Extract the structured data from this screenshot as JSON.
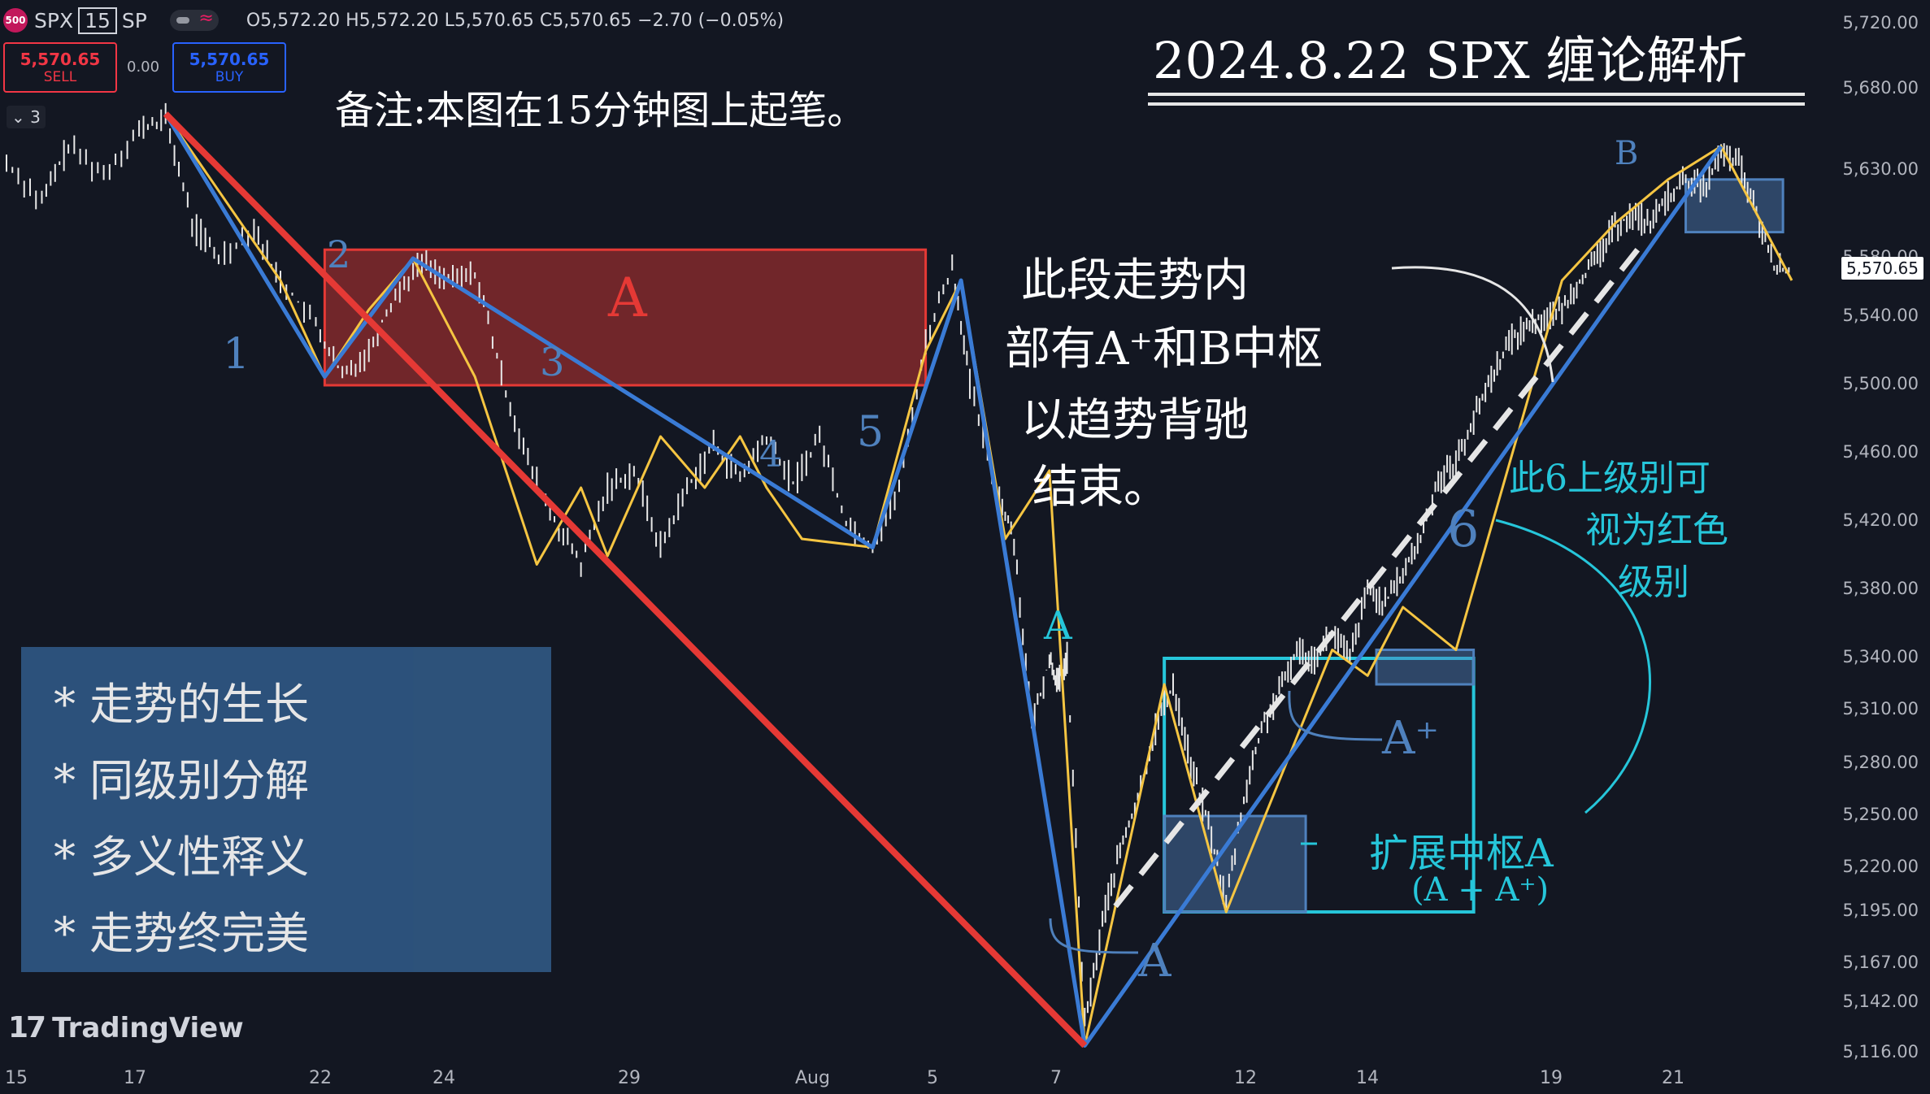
{
  "header": {
    "symbol_badge": "500",
    "symbol": "SPX",
    "interval": "15",
    "exchange": "SP",
    "ohlc": "O5,572.20  H5,572.20  L5,570.65  C5,570.65  −2.70 (−0.05%)"
  },
  "trade": {
    "sell_price": "5,570.65",
    "sell_label": "SELL",
    "spread": "0.00",
    "buy_price": "5,570.65",
    "buy_label": "BUY"
  },
  "indicator_count": "3",
  "last_price": "5,570.65",
  "brand": "TradingView",
  "annotations": {
    "title": "2024.8.22 SPX 缠论解析",
    "remark": "备注:本图在15分钟图上起笔。",
    "body_1": "此段走势内",
    "body_2": "部有A⁺和B中枢",
    "body_3": "以趋势背驰",
    "body_4": "结束。",
    "level_1": "此6上级别可",
    "level_2": "视为红色",
    "level_3": "级别",
    "expand_1": "扩展中枢A",
    "expand_2": "(A + A⁺)",
    "label_A_red": "A",
    "label_A_cyan": "A",
    "label_B": "B",
    "label_A_bottom": "A",
    "label_A_plus": "A⁺",
    "stroke_1": "1",
    "stroke_2": "2",
    "stroke_3": "3",
    "stroke_4": "4",
    "stroke_5": "5",
    "stroke_6": "6"
  },
  "notes": [
    "* 走势的生长",
    "* 同级别分解",
    "* 多义性释义",
    "* 走势终完美"
  ],
  "chart_data": {
    "type": "line",
    "x_ticks": [
      "15",
      "17",
      "22",
      "24",
      "29",
      "Aug",
      "5",
      "7",
      "12",
      "14",
      "19",
      "21"
    ],
    "y_ticks": [
      5116,
      5142,
      5167,
      5195,
      5220,
      5250,
      5280,
      5310,
      5340,
      5380,
      5420,
      5460,
      5500,
      5540,
      5580,
      5630,
      5680,
      5720
    ],
    "y_tick_labels": [
      "5,116.00",
      "5,142.00",
      "5,167.00",
      "5,195.00",
      "5,220.00",
      "5,250.00",
      "5,280.00",
      "5,310.00",
      "5,340.00",
      "5,380.00",
      "5,420.00",
      "5,460.00",
      "5,500.00",
      "5,540.00",
      "5,580.00",
      "5,630.00",
      "5,680.00",
      "5,720.00"
    ],
    "ylim": [
      5116,
      5720
    ],
    "price_path": [
      [
        0,
        5635
      ],
      [
        8,
        5612
      ],
      [
        14,
        5645
      ],
      [
        22,
        5628
      ],
      [
        30,
        5655
      ],
      [
        36,
        5662
      ],
      [
        42,
        5600
      ],
      [
        48,
        5580
      ],
      [
        56,
        5598
      ],
      [
        62,
        5565
      ],
      [
        70,
        5535
      ],
      [
        76,
        5505
      ],
      [
        82,
        5520
      ],
      [
        88,
        5555
      ],
      [
        94,
        5578
      ],
      [
        100,
        5565
      ],
      [
        106,
        5570
      ],
      [
        112,
        5505
      ],
      [
        118,
        5455
      ],
      [
        124,
        5420
      ],
      [
        130,
        5395
      ],
      [
        136,
        5440
      ],
      [
        142,
        5450
      ],
      [
        148,
        5405
      ],
      [
        154,
        5440
      ],
      [
        160,
        5465
      ],
      [
        166,
        5445
      ],
      [
        172,
        5470
      ],
      [
        178,
        5442
      ],
      [
        184,
        5470
      ],
      [
        190,
        5420
      ],
      [
        196,
        5405
      ],
      [
        202,
        5440
      ],
      [
        208,
        5525
      ],
      [
        214,
        5575
      ],
      [
        218,
        5500
      ],
      [
        224,
        5440
      ],
      [
        228,
        5410
      ],
      [
        232,
        5300
      ],
      [
        236,
        5340
      ],
      [
        238,
        5325
      ],
      [
        240,
        5340
      ],
      [
        244,
        5130
      ],
      [
        248,
        5190
      ],
      [
        252,
        5230
      ],
      [
        256,
        5260
      ],
      [
        260,
        5300
      ],
      [
        264,
        5325
      ],
      [
        268,
        5280
      ],
      [
        272,
        5245
      ],
      [
        276,
        5200
      ],
      [
        280,
        5260
      ],
      [
        284,
        5300
      ],
      [
        288,
        5320
      ],
      [
        292,
        5345
      ],
      [
        296,
        5340
      ],
      [
        300,
        5355
      ],
      [
        304,
        5340
      ],
      [
        308,
        5380
      ],
      [
        312,
        5372
      ],
      [
        316,
        5390
      ],
      [
        320,
        5410
      ],
      [
        324,
        5445
      ],
      [
        328,
        5455
      ],
      [
        332,
        5480
      ],
      [
        336,
        5505
      ],
      [
        340,
        5525
      ],
      [
        344,
        5535
      ],
      [
        348,
        5540
      ],
      [
        352,
        5545
      ],
      [
        356,
        5565
      ],
      [
        360,
        5580
      ],
      [
        364,
        5598
      ],
      [
        368,
        5605
      ],
      [
        372,
        5600
      ],
      [
        376,
        5615
      ],
      [
        380,
        5625
      ],
      [
        384,
        5620
      ],
      [
        388,
        5640
      ],
      [
        392,
        5635
      ],
      [
        396,
        5605
      ],
      [
        400,
        5575
      ],
      [
        404,
        5570
      ]
    ],
    "x_max": 404,
    "red_segment": [
      [
        36,
        5665
      ],
      [
        244,
        5120
      ]
    ],
    "strokes_15min": [
      [
        36,
        5665
      ],
      [
        62,
        5565
      ],
      [
        72,
        5505
      ],
      [
        82,
        5545
      ],
      [
        92,
        5580
      ],
      [
        106,
        5505
      ],
      [
        120,
        5395
      ],
      [
        130,
        5440
      ],
      [
        136,
        5400
      ],
      [
        148,
        5470
      ],
      [
        158,
        5440
      ],
      [
        166,
        5470
      ],
      [
        172,
        5440
      ],
      [
        180,
        5410
      ],
      [
        196,
        5405
      ],
      [
        208,
        5520
      ],
      [
        216,
        5565
      ],
      [
        226,
        5410
      ],
      [
        236,
        5450
      ],
      [
        244,
        5120
      ],
      [
        262,
        5325
      ],
      [
        276,
        5195
      ],
      [
        300,
        5345
      ],
      [
        308,
        5330
      ],
      [
        316,
        5370
      ],
      [
        328,
        5345
      ],
      [
        352,
        5565
      ],
      [
        364,
        5600
      ],
      [
        376,
        5625
      ],
      [
        388,
        5645
      ],
      [
        404,
        5565
      ]
    ],
    "strokes_higher": [
      [
        36,
        5665
      ],
      [
        72,
        5505
      ],
      [
        92,
        5580
      ],
      [
        196,
        5405
      ],
      [
        216,
        5565
      ],
      [
        244,
        5120
      ],
      [
        388,
        5645
      ]
    ],
    "zones": [
      {
        "name": "A",
        "x0": 72,
        "x1": 208,
        "y0": 5500,
        "y1": 5585,
        "color": "#e53935"
      },
      {
        "name": "A",
        "x0": 262,
        "x1": 332,
        "y0": 5195,
        "y1": 5340,
        "color": "#26c6da"
      },
      {
        "name": "A",
        "x0": 262,
        "x1": 294,
        "y0": 5195,
        "y1": 5250,
        "color": "#4f81bd"
      },
      {
        "name": "A⁺",
        "x0": 310,
        "x1": 332,
        "y0": 5325,
        "y1": 5345,
        "color": "#4f81bd"
      },
      {
        "name": "B",
        "x0": 380,
        "x1": 402,
        "y0": 5595,
        "y1": 5625,
        "color": "#4f81bd"
      }
    ]
  }
}
